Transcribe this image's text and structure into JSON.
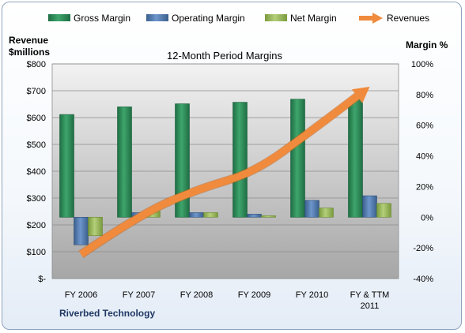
{
  "chart_data": {
    "type": "bar",
    "title": "12-Month Period Margins",
    "company_label": "Riverbed Technology",
    "categories": [
      "FY 2006",
      "FY 2007",
      "FY 2008",
      "FY 2009",
      "FY 2010",
      "FY & TTM 2011"
    ],
    "category_lines": [
      [
        "FY 2006"
      ],
      [
        "FY 2007"
      ],
      [
        "FY 2008"
      ],
      [
        "FY 2009"
      ],
      [
        "FY 2010"
      ],
      [
        "FY & TTM",
        "2011"
      ]
    ],
    "y_left": {
      "label_lines": [
        "Revenue",
        "$millions"
      ],
      "range": [
        0,
        800
      ],
      "ticks": [
        0,
        100,
        200,
        300,
        400,
        500,
        600,
        700,
        800
      ],
      "tick_labels": [
        "$-",
        "$100",
        "$200",
        "$300",
        "$400",
        "$500",
        "$600",
        "$700",
        "$800"
      ]
    },
    "y_right": {
      "label": "Margin %",
      "range": [
        -40,
        100
      ],
      "ticks": [
        -40,
        -20,
        0,
        20,
        40,
        60,
        80,
        100
      ],
      "tick_labels": [
        "-40%",
        "-20%",
        "0%",
        "20%",
        "40%",
        "60%",
        "80%",
        "100%"
      ]
    },
    "bar_series": [
      {
        "name": "Gross Margin",
        "axis": "right",
        "color": "#2e8b57",
        "values": [
          67,
          72,
          74,
          75,
          77,
          77
        ]
      },
      {
        "name": "Operating Margin",
        "axis": "right",
        "color": "#4f81bd",
        "values": [
          -18,
          3,
          3,
          2,
          11,
          14
        ]
      },
      {
        "name": "Net Margin",
        "axis": "right",
        "color": "#9bbb59",
        "values": [
          -12,
          4,
          3,
          1,
          6,
          9
        ]
      }
    ],
    "line_series": {
      "name": "Revenues",
      "axis": "left",
      "color": "#f79646",
      "values": [
        90,
        236,
        332,
        395,
        552,
        715
      ]
    },
    "grid": true,
    "legend_position": "top"
  }
}
